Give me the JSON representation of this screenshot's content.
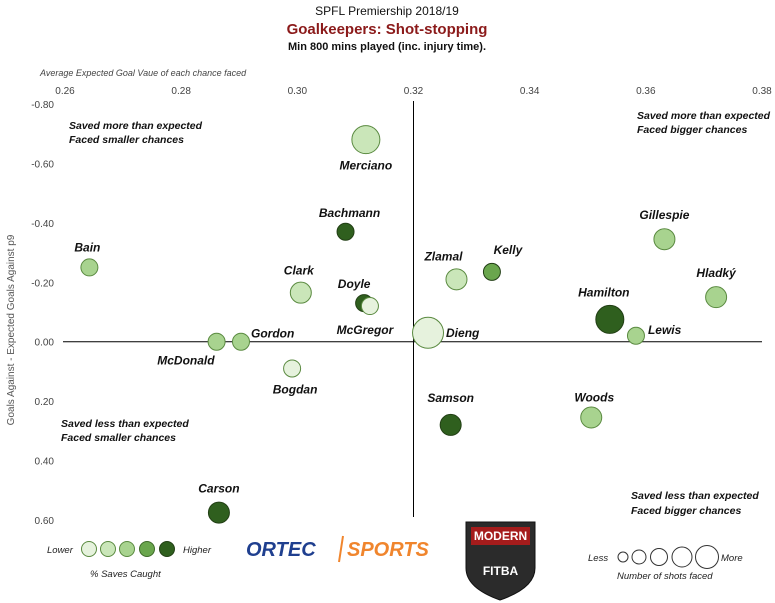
{
  "header": {
    "line1": "SPFL Premiership 2018/19",
    "line2": "Goalkeepers: Shot-stopping",
    "line3": "Min 800 mins played (inc. injury time)."
  },
  "colors": {
    "title_accent": "#8b1a1a",
    "bubble_scale": [
      "#e6f2dd",
      "#cae6b9",
      "#a8d38f",
      "#6aa64d",
      "#2f5f1e"
    ],
    "bubble_stroke": "#5a8a40"
  },
  "chart_data": {
    "type": "scatter",
    "xlabel": "Average Expected Goal Vaue of each chance faced",
    "ylabel": "Goals Against - Expected Goals Against p9",
    "xlim": [
      0.26,
      0.38
    ],
    "ylim": [
      -0.8,
      0.6
    ],
    "y_axis_inverted": true,
    "x_ticks": [
      "0.26",
      "0.28",
      "0.30",
      "0.32",
      "0.34",
      "0.36",
      "0.38"
    ],
    "y_ticks": [
      "-0.80",
      "-0.60",
      "-0.40",
      "-0.20",
      "0.00",
      "0.20",
      "0.40",
      "0.60"
    ],
    "x_tick_values": [
      0.26,
      0.28,
      0.3,
      0.32,
      0.34,
      0.36,
      0.38
    ],
    "y_tick_values": [
      -0.8,
      -0.6,
      -0.4,
      -0.2,
      0.0,
      0.2,
      0.4,
      0.6
    ],
    "reference_lines": {
      "x": 0.32,
      "y": 0.0
    },
    "color_legend": "% Saves Caught",
    "size_legend": "Number of shots faced",
    "points": [
      {
        "name": "Merciano",
        "x": 0.3118,
        "y": -0.68,
        "saves_level": 2,
        "shots_level": 3
      },
      {
        "name": "Bachmann",
        "x": 0.3083,
        "y": -0.37,
        "saves_level": 5,
        "shots_level": 1
      },
      {
        "name": "Bain",
        "x": 0.2642,
        "y": -0.25,
        "saves_level": 3,
        "shots_level": 1
      },
      {
        "name": "Clark",
        "x": 0.3006,
        "y": -0.165,
        "saves_level": 2,
        "shots_level": 2
      },
      {
        "name": "Doyle",
        "x": 0.3115,
        "y": -0.13,
        "saves_level": 5,
        "shots_level": 1
      },
      {
        "name": "McGregor",
        "x": 0.3125,
        "y": -0.12,
        "saves_level": 1,
        "shots_level": 1
      },
      {
        "name": "Zlamal",
        "x": 0.3274,
        "y": -0.21,
        "saves_level": 2,
        "shots_level": 2
      },
      {
        "name": "Kelly",
        "x": 0.3335,
        "y": -0.235,
        "saves_level": 4,
        "shots_level": 1
      },
      {
        "name": "Gillespie",
        "x": 0.3632,
        "y": -0.345,
        "saves_level": 3,
        "shots_level": 2
      },
      {
        "name": "Hladký",
        "x": 0.3721,
        "y": -0.15,
        "saves_level": 3,
        "shots_level": 2
      },
      {
        "name": "Hamilton",
        "x": 0.3538,
        "y": -0.075,
        "saves_level": 5,
        "shots_level": 3
      },
      {
        "name": "Dieng",
        "x": 0.3225,
        "y": -0.03,
        "saves_level": 1,
        "shots_level": 4
      },
      {
        "name": "Lewis",
        "x": 0.3583,
        "y": -0.02,
        "saves_level": 3,
        "shots_level": 1
      },
      {
        "name": "Gordon",
        "x": 0.2903,
        "y": 0.0,
        "saves_level": 3,
        "shots_level": 1
      },
      {
        "name": "McDonald",
        "x": 0.2861,
        "y": 0.0,
        "saves_level": 3,
        "shots_level": 1
      },
      {
        "name": "Bogdan",
        "x": 0.2991,
        "y": 0.09,
        "saves_level": 1,
        "shots_level": 1
      },
      {
        "name": "Samson",
        "x": 0.3264,
        "y": 0.28,
        "saves_level": 5,
        "shots_level": 2
      },
      {
        "name": "Woods",
        "x": 0.3506,
        "y": 0.255,
        "saves_level": 3,
        "shots_level": 2
      },
      {
        "name": "Carson",
        "x": 0.2865,
        "y": 0.575,
        "saves_level": 5,
        "shots_level": 2
      }
    ],
    "quadrant_labels": {
      "top_left": [
        "Saved more than expected",
        "Faced smaller chances"
      ],
      "top_right": [
        "Saved more than expected",
        "Faced bigger chances"
      ],
      "bottom_left": [
        "Saved less than expected",
        "Faced smaller chances"
      ],
      "bottom_right": [
        "Saved less than expected",
        "Faced bigger chances"
      ]
    },
    "legend": {
      "saves_low": "Lower",
      "saves_high": "Higher",
      "shots_low": "Less",
      "shots_high": "More"
    }
  },
  "logos": {
    "ortec": "ORTEC",
    "sports": "SPORTS",
    "modern_fitba_line1": "MODERN",
    "modern_fitba_line2": "FITBA"
  }
}
